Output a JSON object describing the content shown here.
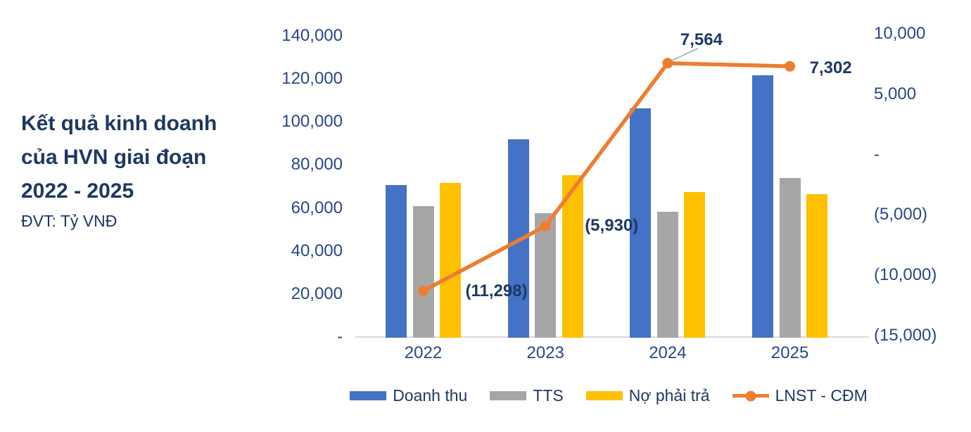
{
  "header": {
    "title_lines": [
      "Kết quả kinh doanh",
      "của HVN giai đoạn",
      "2022 - 2025"
    ],
    "unit_label": "ĐVT: Tỷ VNĐ"
  },
  "colors": {
    "revenue_bar": "#4472C4",
    "assets_bar": "#A6A6A6",
    "liabilities_bar": "#FFC000",
    "profit_line": "#ED7D31",
    "title_text": "#1F3864",
    "axis_text": "#2B4687",
    "data_label_text": "#1F3864",
    "axis_line": "#D9D9D9",
    "leader_line": "#A6A6A6"
  },
  "chart_data": {
    "type": "bar",
    "subtype": "combo-bar-line-dual-axis",
    "title": "Kết quả kinh doanh của HVN giai đoạn 2022 - 2025",
    "unit": "ĐVT: Tỷ VNĐ",
    "categories": [
      "2022",
      "2023",
      "2024",
      "2025"
    ],
    "series": [
      {
        "name": "Doanh thu",
        "type": "bar",
        "axis": "left",
        "color": "#4472C4",
        "values": [
          70600,
          91900,
          106300,
          121800
        ]
      },
      {
        "name": "TTS",
        "type": "bar",
        "axis": "left",
        "color": "#A6A6A6",
        "values": [
          60800,
          57700,
          58100,
          73800
        ]
      },
      {
        "name": "Nợ phải trả",
        "type": "bar",
        "axis": "left",
        "color": "#FFC000",
        "values": [
          71600,
          75200,
          67500,
          66400
        ]
      },
      {
        "name": "LNST - CĐM",
        "type": "line",
        "axis": "right",
        "color": "#ED7D31",
        "values": [
          -11298,
          -5930,
          7564,
          7302
        ],
        "point_labels": [
          "(11,298)",
          "(5,930)",
          "7,564",
          "7,302"
        ]
      }
    ],
    "left_axis": {
      "min": 0,
      "max": 140000,
      "step": 20000,
      "ticks": [
        {
          "value": 0,
          "label": "-"
        },
        {
          "value": 20000,
          "label": "20,000"
        },
        {
          "value": 40000,
          "label": "40,000"
        },
        {
          "value": 60000,
          "label": "60,000"
        },
        {
          "value": 80000,
          "label": "80,000"
        },
        {
          "value": 100000,
          "label": "100,000"
        },
        {
          "value": 120000,
          "label": "120,000"
        },
        {
          "value": 140000,
          "label": "140,000"
        }
      ]
    },
    "right_axis": {
      "min": -15000,
      "max": 10000,
      "step": 5000,
      "ticks": [
        {
          "value": -15000,
          "label": "(15,000)"
        },
        {
          "value": -10000,
          "label": "(10,000)"
        },
        {
          "value": -5000,
          "label": "(5,000)"
        },
        {
          "value": 0,
          "label": "-"
        },
        {
          "value": 5000,
          "label": "5,000"
        },
        {
          "value": 10000,
          "label": "10,000"
        }
      ]
    },
    "grid": false,
    "legend_position": "bottom",
    "legend": [
      "Doanh thu",
      "TTS",
      "Nợ phải trả",
      "LNST - CĐM"
    ]
  }
}
